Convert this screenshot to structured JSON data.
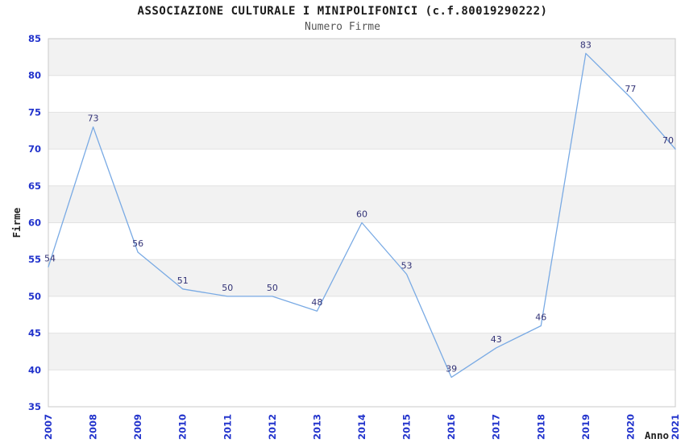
{
  "header": {
    "title": "ASSOCIAZIONE CULTURALE I MINIPOLIFONICI (c.f.80019290222)",
    "subtitle": "Numero Firme"
  },
  "chart_data": {
    "type": "line",
    "title": "ASSOCIAZIONE CULTURALE I MINIPOLIFONICI (c.f.80019290222)",
    "subtitle": "Numero Firme",
    "xlabel": "Anno",
    "ylabel": "Firme",
    "x": [
      "2007",
      "2008",
      "2009",
      "2010",
      "2011",
      "2012",
      "2013",
      "2014",
      "2015",
      "2016",
      "2017",
      "2018",
      "2019",
      "2020",
      "2021"
    ],
    "series": [
      {
        "name": "Numero Firme",
        "values": [
          54,
          73,
          56,
          51,
          50,
          50,
          48,
          60,
          53,
          39,
          43,
          46,
          83,
          77,
          70
        ]
      }
    ],
    "ylim": [
      35,
      85
    ],
    "ytick_step": 5,
    "yticks": [
      35,
      40,
      45,
      50,
      55,
      60,
      65,
      70,
      75,
      80,
      85
    ],
    "grid": "horizontal-bands-alternating",
    "legend": "none",
    "point_markers": false,
    "data_labels": true,
    "colors": {
      "line": "#79aae4",
      "tick_label": "#2233cc",
      "value_label": "#333377",
      "band_gray": "#f2f2f2",
      "band_white": "#ffffff",
      "grid_line": "#e2e2e2",
      "plot_border": "#c9c9c9",
      "axis_title": "#222222",
      "title": "#1a1a1a",
      "subtitle": "#555555"
    }
  }
}
